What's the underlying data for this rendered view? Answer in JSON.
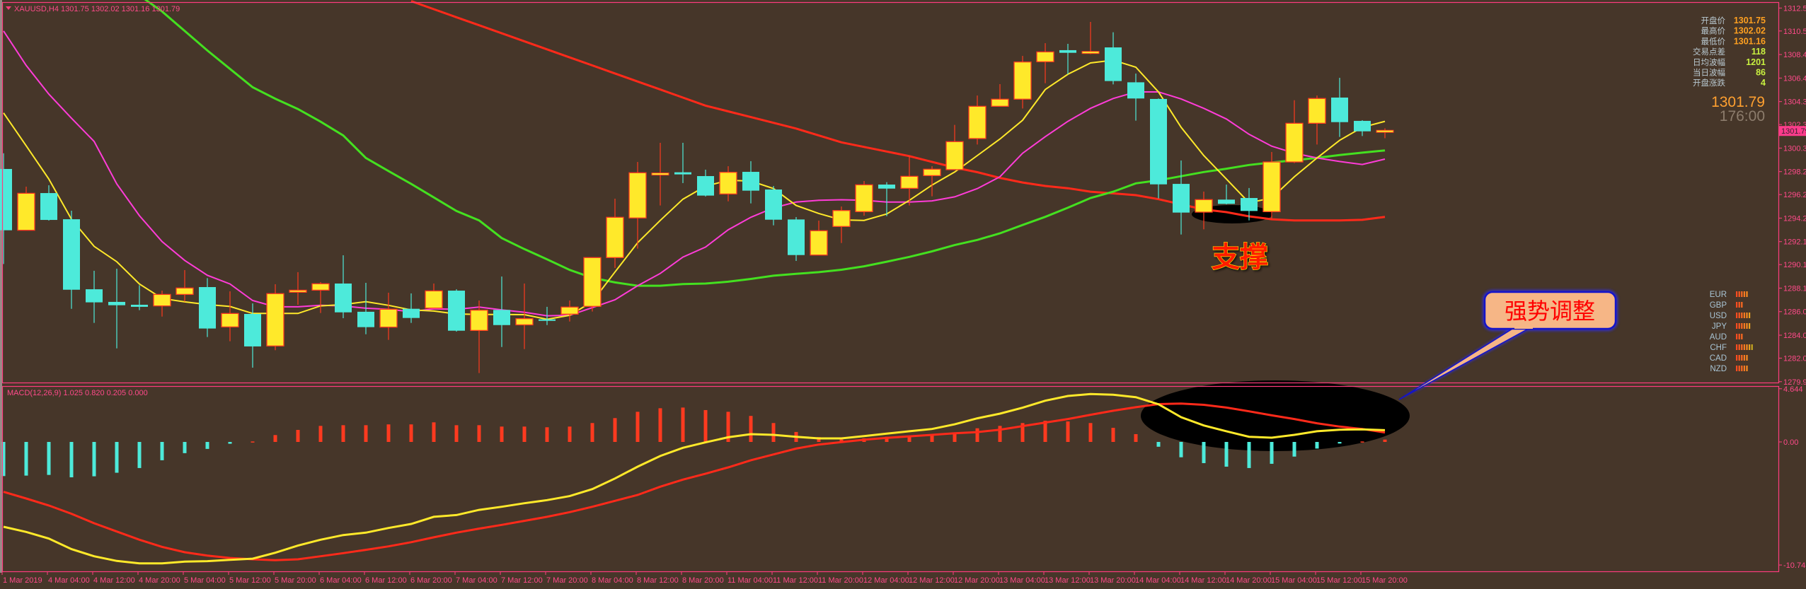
{
  "header": {
    "symbol_line": "XAUUSD,H4  1301.75 1302.02 1301.16 1301.79",
    "menu_icon": "triangle-down-icon"
  },
  "info_panel": {
    "rows": [
      {
        "label": "开盘价",
        "value": "1301.75",
        "color": "#ffa020"
      },
      {
        "label": "最高价",
        "value": "1302.02",
        "color": "#ffa020"
      },
      {
        "label": "最低价",
        "value": "1301.16",
        "color": "#ffa020"
      },
      {
        "label": "交易点差",
        "value": "118",
        "color": "#c8f040"
      },
      {
        "label": "日均波幅",
        "value": "1201",
        "color": "#c8f040"
      },
      {
        "label": "当日波幅",
        "value": "86",
        "color": "#c8f040"
      },
      {
        "label": "开盘涨跌",
        "value": "4",
        "color": "#c8f040"
      }
    ],
    "price": "1301.79",
    "countdown": "176:00"
  },
  "currency_strength": [
    {
      "code": "EUR",
      "bars": 5
    },
    {
      "code": "GBP",
      "bars": 3
    },
    {
      "code": "USD",
      "bars": 6
    },
    {
      "code": "JPY",
      "bars": 6
    },
    {
      "code": "AUD",
      "bars": 3
    },
    {
      "code": "CHF",
      "bars": 7
    },
    {
      "code": "CAD",
      "bars": 5
    },
    {
      "code": "NZD",
      "bars": 5
    }
  ],
  "annotations": {
    "support": "支撑",
    "callout": "强势调整"
  },
  "colors": {
    "background": "#463629",
    "frame": "#ff3c7e",
    "bull_body": "#ffe92a",
    "bull_outline": "#ff3a1f",
    "bear_body": "#4deada",
    "ma_fast": "#ffe92a",
    "ma_mid": "#ff3cd8",
    "ma_slow": "#44e020",
    "ma_long": "#ff2a1a",
    "macd_line": "#ffe92a",
    "signal_line": "#ff2a1a",
    "hist_pos": "#ff3a1f",
    "hist_neg": "#4deada",
    "callout_fill": "#f6b686",
    "callout_border": "#1414c8"
  },
  "chart_data": [
    {
      "type": "candlestick",
      "symbol": "XAUUSD,H4",
      "ylim": [
        1279.8,
        1313.2
      ],
      "y_ticks": [
        "1312.50",
        "1310.50",
        "1308.45",
        "1306.40",
        "1304.35",
        "1302.35",
        "1300.30",
        "1298.25",
        "1296.25",
        "1294.20",
        "1292.15",
        "1290.15",
        "1288.10",
        "1286.05",
        "1284.00",
        "1282.00",
        "1279.95"
      ],
      "x_tick_labels": [
        "1 Mar 2019",
        "4 Mar 04:00",
        "4 Mar 12:00",
        "4 Mar 20:00",
        "5 Mar 04:00",
        "5 Mar 12:00",
        "5 Mar 20:00",
        "6 Mar 04:00",
        "6 Mar 12:00",
        "6 Mar 20:00",
        "7 Mar 04:00",
        "7 Mar 12:00",
        "7 Mar 20:00",
        "8 Mar 04:00",
        "8 Mar 12:00",
        "8 Mar 20:00",
        "11 Mar 04:00",
        "11 Mar 12:00",
        "11 Mar 20:00",
        "12 Mar 04:00",
        "12 Mar 12:00",
        "12 Mar 20:00",
        "13 Mar 04:00",
        "13 Mar 12:00",
        "13 Mar 20:00",
        "14 Mar 04:00",
        "14 Mar 12:00",
        "14 Mar 20:00",
        "15 Mar 04:00",
        "15 Mar 12:00",
        "15 Mar 20:00"
      ],
      "current_price_label": "1301.79",
      "candles_ohlc": [
        [
          1298.48,
          1299.85,
          1290.2,
          1293.14
        ],
        [
          1293.14,
          1296.94,
          1293.14,
          1296.36
        ],
        [
          1296.38,
          1297.06,
          1293.98,
          1294.04
        ],
        [
          1294.1,
          1294.84,
          1286.3,
          1287.96
        ],
        [
          1288.0,
          1289.61,
          1285.07,
          1286.86
        ],
        [
          1286.9,
          1289.79,
          1282.85,
          1286.61
        ],
        [
          1286.65,
          1288.35,
          1286.18,
          1286.47
        ],
        [
          1286.55,
          1287.88,
          1285.62,
          1287.55
        ],
        [
          1287.55,
          1289.67,
          1286.92,
          1288.11
        ],
        [
          1288.19,
          1288.97,
          1283.84,
          1284.58
        ],
        [
          1284.72,
          1287.82,
          1283.47,
          1285.89
        ],
        [
          1285.85,
          1286.77,
          1281.17,
          1283.02
        ],
        [
          1283.06,
          1288.44,
          1282.69,
          1287.62
        ],
        [
          1287.74,
          1289.49,
          1286.65,
          1287.92
        ],
        [
          1287.92,
          1288.62,
          1285.93,
          1288.48
        ],
        [
          1288.5,
          1290.96,
          1285.48,
          1285.99
        ],
        [
          1286.04,
          1288.56,
          1284.08,
          1284.7
        ],
        [
          1284.7,
          1287.7,
          1283.59,
          1286.26
        ],
        [
          1286.3,
          1287.64,
          1285.07,
          1285.5
        ],
        [
          1286.36,
          1288.5,
          1286.36,
          1287.86
        ],
        [
          1287.88,
          1288.0,
          1284.31,
          1284.39
        ],
        [
          1284.41,
          1287.02,
          1280.7,
          1286.18
        ],
        [
          1286.2,
          1289.11,
          1282.97,
          1284.88
        ],
        [
          1284.9,
          1288.5,
          1282.79,
          1285.44
        ],
        [
          1285.38,
          1286.47,
          1284.88,
          1285.25
        ],
        [
          1285.83,
          1287.02,
          1285.19,
          1286.45
        ],
        [
          1286.51,
          1290.76,
          1286.06,
          1290.76
        ],
        [
          1290.76,
          1295.89,
          1289.85,
          1294.27
        ],
        [
          1294.21,
          1299.09,
          1291.54,
          1298.15
        ],
        [
          1298.03,
          1300.76,
          1295.3,
          1298.07
        ],
        [
          1298.13,
          1300.76,
          1297.25,
          1298.09
        ],
        [
          1297.86,
          1298.42,
          1296.08,
          1296.16
        ],
        [
          1296.3,
          1298.72,
          1295.66,
          1298.19
        ],
        [
          1298.23,
          1299.16,
          1295.48,
          1296.59
        ],
        [
          1296.69,
          1297.0,
          1293.57,
          1294.06
        ],
        [
          1294.08,
          1294.29,
          1290.47,
          1290.98
        ],
        [
          1290.98,
          1293.98,
          1290.98,
          1293.1
        ],
        [
          1293.47,
          1295.21,
          1292.03,
          1294.86
        ],
        [
          1294.76,
          1297.43,
          1294.41,
          1297.1
        ],
        [
          1297.12,
          1297.33,
          1294.37,
          1296.77
        ],
        [
          1296.79,
          1299.65,
          1295.3,
          1297.84
        ],
        [
          1297.9,
          1298.72,
          1296.1,
          1298.46
        ],
        [
          1298.42,
          1302.32,
          1298.42,
          1300.86
        ],
        [
          1301.13,
          1304.88,
          1300.61,
          1303.94
        ],
        [
          1303.94,
          1305.87,
          1303.94,
          1304.56
        ],
        [
          1304.56,
          1308.33,
          1303.75,
          1307.8
        ],
        [
          1307.82,
          1309.44,
          1305.95,
          1308.68
        ],
        [
          1308.83,
          1309.38,
          1306.73,
          1308.6
        ],
        [
          1308.54,
          1311.29,
          1308.48,
          1308.66
        ],
        [
          1309.07,
          1310.39,
          1305.85,
          1306.14
        ],
        [
          1306.03,
          1306.79,
          1302.69,
          1304.62
        ],
        [
          1304.58,
          1304.62,
          1295.91,
          1297.14
        ],
        [
          1297.18,
          1299.22,
          1292.77,
          1294.68
        ],
        [
          1294.72,
          1296.51,
          1293.22,
          1295.81
        ],
        [
          1295.81,
          1297.12,
          1295.4,
          1295.44
        ],
        [
          1295.95,
          1296.82,
          1294.0,
          1294.82
        ],
        [
          1294.76,
          1299.96,
          1294.15,
          1299.09
        ],
        [
          1299.09,
          1304.47,
          1298.99,
          1302.46
        ],
        [
          1302.46,
          1304.88,
          1300.61,
          1304.62
        ],
        [
          1304.7,
          1306.42,
          1301.27,
          1302.56
        ],
        [
          1302.67,
          1302.73,
          1301.35,
          1301.76
        ],
        [
          1301.75,
          1302.02,
          1301.16,
          1301.79
        ]
      ],
      "moving_averages": [
        {
          "color_key": "ma_long",
          "values": [
            null,
            null,
            null,
            null,
            null,
            null,
            null,
            null,
            null,
            null,
            null,
            null,
            null,
            null,
            null,
            null,
            null,
            null,
            1313.1,
            1312.4,
            1311.7,
            1311.0,
            1310.3,
            1309.6,
            1308.9,
            1308.2,
            1307.5,
            1306.8,
            1306.1,
            1305.4,
            1304.7,
            1304.0,
            1303.5,
            1303.0,
            1302.5,
            1302.0,
            1301.4,
            1300.8,
            1300.4,
            1300.0,
            1299.6,
            1299.1,
            1298.6,
            1298.2,
            1297.7,
            1297.3,
            1297.0,
            1296.8,
            1296.5,
            1296.35,
            1296.2,
            1295.85,
            1295.4,
            1294.95,
            1294.72,
            1294.35,
            1294.1,
            1294.0,
            1294.0,
            1294.0,
            1294.05,
            1294.3
          ]
        },
        {
          "color_key": "ma_slow",
          "values": [
            null,
            null,
            null,
            null,
            null,
            null,
            1313.6,
            1312.2,
            1310.5,
            1308.8,
            1307.2,
            1305.6,
            1304.6,
            1303.7,
            1302.6,
            1301.4,
            1299.44,
            1298.3,
            1297.18,
            1296.0,
            1294.82,
            1294.0,
            1292.46,
            1291.5,
            1290.61,
            1289.69,
            1289.0,
            1288.6,
            1288.31,
            1288.31,
            1288.45,
            1288.5,
            1288.66,
            1288.9,
            1289.18,
            1289.35,
            1289.49,
            1289.7,
            1290.0,
            1290.4,
            1290.82,
            1291.3,
            1291.85,
            1292.3,
            1292.87,
            1293.6,
            1294.31,
            1295.1,
            1295.95,
            1296.5,
            1297.23,
            1297.49,
            1297.85,
            1298.21,
            1298.5,
            1298.83,
            1299.05,
            1299.24,
            1299.45,
            1299.69,
            1299.9,
            1300.1
          ]
        },
        {
          "color_key": "ma_mid",
          "values": [
            1310.5,
            1307.5,
            1305.0,
            1302.9,
            1300.88,
            1297.18,
            1294.41,
            1292.15,
            1290.51,
            1289.22,
            1288.46,
            1287.02,
            1286.47,
            1286.47,
            1286.6,
            1286.55,
            1286.35,
            1286.25,
            1286.05,
            1286.3,
            1286.25,
            1286.45,
            1286.2,
            1286.0,
            1285.69,
            1285.73,
            1286.4,
            1287.08,
            1288.31,
            1289.38,
            1290.8,
            1291.68,
            1293.18,
            1294.27,
            1295.09,
            1295.6,
            1295.75,
            1295.8,
            1295.75,
            1295.6,
            1295.6,
            1295.7,
            1296.05,
            1296.77,
            1297.8,
            1299.85,
            1301.29,
            1302.63,
            1303.76,
            1304.62,
            1305.19,
            1305.19,
            1304.58,
            1303.76,
            1302.83,
            1301.5,
            1300.47,
            1299.85,
            1299.44,
            1299.13,
            1298.87,
            1299.34
          ]
        },
        {
          "color_key": "ma_fast",
          "values": [
            1303.36,
            1300.5,
            1297.6,
            1294.1,
            1291.74,
            1290.4,
            1288.46,
            1287.2,
            1286.9,
            1286.67,
            1286.5,
            1285.89,
            1285.89,
            1285.89,
            1286.55,
            1286.67,
            1286.92,
            1286.6,
            1286.2,
            1286.1,
            1285.85,
            1285.8,
            1285.8,
            1285.79,
            1285.38,
            1285.73,
            1286.92,
            1289.5,
            1292.05,
            1294.0,
            1295.85,
            1296.98,
            1297.49,
            1297.43,
            1296.77,
            1295.3,
            1294.6,
            1294.04,
            1294.0,
            1294.56,
            1295.75,
            1297.08,
            1298.21,
            1299.65,
            1301.09,
            1302.73,
            1305.4,
            1306.73,
            1307.72,
            1307.96,
            1307.35,
            1305.19,
            1302.11,
            1299.65,
            1297.6,
            1295.54,
            1295.95,
            1297.8,
            1299.44,
            1300.98,
            1302.11,
            1302.63
          ]
        }
      ]
    },
    {
      "type": "bar",
      "title": "MACD(12,26,9) 1.025 0.820 0.205 0.000",
      "ylim": [
        -10.745,
        4.644
      ],
      "y_ticks": [
        "4.644",
        "0.00",
        "-10.745"
      ],
      "histogram": [
        -2.98,
        -2.94,
        -2.88,
        -3.09,
        -3.0,
        -2.69,
        -2.28,
        -1.6,
        -0.98,
        -0.61,
        -0.16,
        0.04,
        0.6,
        1.05,
        1.4,
        1.46,
        1.46,
        1.53,
        1.53,
        1.71,
        1.46,
        1.46,
        1.34,
        1.34,
        1.28,
        1.34,
        1.65,
        2.08,
        2.63,
        2.94,
        3.0,
        2.78,
        2.63,
        2.27,
        1.65,
        0.87,
        0.42,
        0.21,
        0.31,
        0.45,
        0.51,
        0.58,
        0.72,
        1.19,
        1.4,
        1.65,
        1.85,
        1.79,
        1.65,
        1.23,
        0.68,
        -0.42,
        -1.34,
        -1.85,
        -2.16,
        -2.28,
        -1.91,
        -1.28,
        -0.58,
        -0.14,
        0.04,
        0.205
      ],
      "macd": [
        -7.41,
        -7.86,
        -8.44,
        -9.36,
        -9.98,
        -10.39,
        -10.6,
        -10.6,
        -10.45,
        -10.41,
        -10.29,
        -10.19,
        -9.67,
        -9.05,
        -8.54,
        -8.13,
        -7.92,
        -7.51,
        -7.16,
        -6.54,
        -6.38,
        -5.93,
        -5.66,
        -5.35,
        -5.08,
        -4.73,
        -4.12,
        -3.19,
        -2.16,
        -1.23,
        -0.51,
        -0.04,
        0.41,
        0.68,
        0.62,
        0.45,
        0.31,
        0.31,
        0.51,
        0.72,
        0.93,
        1.13,
        1.54,
        2.06,
        2.47,
        2.99,
        3.6,
        4.01,
        4.18,
        4.12,
        3.91,
        3.29,
        2.16,
        1.44,
        0.93,
        0.45,
        0.37,
        0.62,
        0.93,
        1.07,
        1.09,
        1.025
      ],
      "signal": [
        -4.36,
        -4.94,
        -5.55,
        -6.27,
        -7.1,
        -7.82,
        -8.54,
        -9.16,
        -9.63,
        -9.92,
        -10.13,
        -10.25,
        -10.33,
        -10.25,
        -9.98,
        -9.71,
        -9.42,
        -9.12,
        -8.75,
        -8.33,
        -7.92,
        -7.57,
        -7.24,
        -6.89,
        -6.54,
        -6.13,
        -5.66,
        -5.14,
        -4.63,
        -3.91,
        -3.29,
        -2.77,
        -2.22,
        -1.6,
        -1.09,
        -0.58,
        -0.23,
        -0.02,
        0.19,
        0.35,
        0.49,
        0.62,
        0.76,
        0.86,
        1.07,
        1.38,
        1.69,
        2.0,
        2.37,
        2.72,
        3.03,
        3.3,
        3.35,
        3.24,
        3.0,
        2.67,
        2.32,
        2.0,
        1.63,
        1.34,
        1.13,
        0.82
      ]
    }
  ]
}
